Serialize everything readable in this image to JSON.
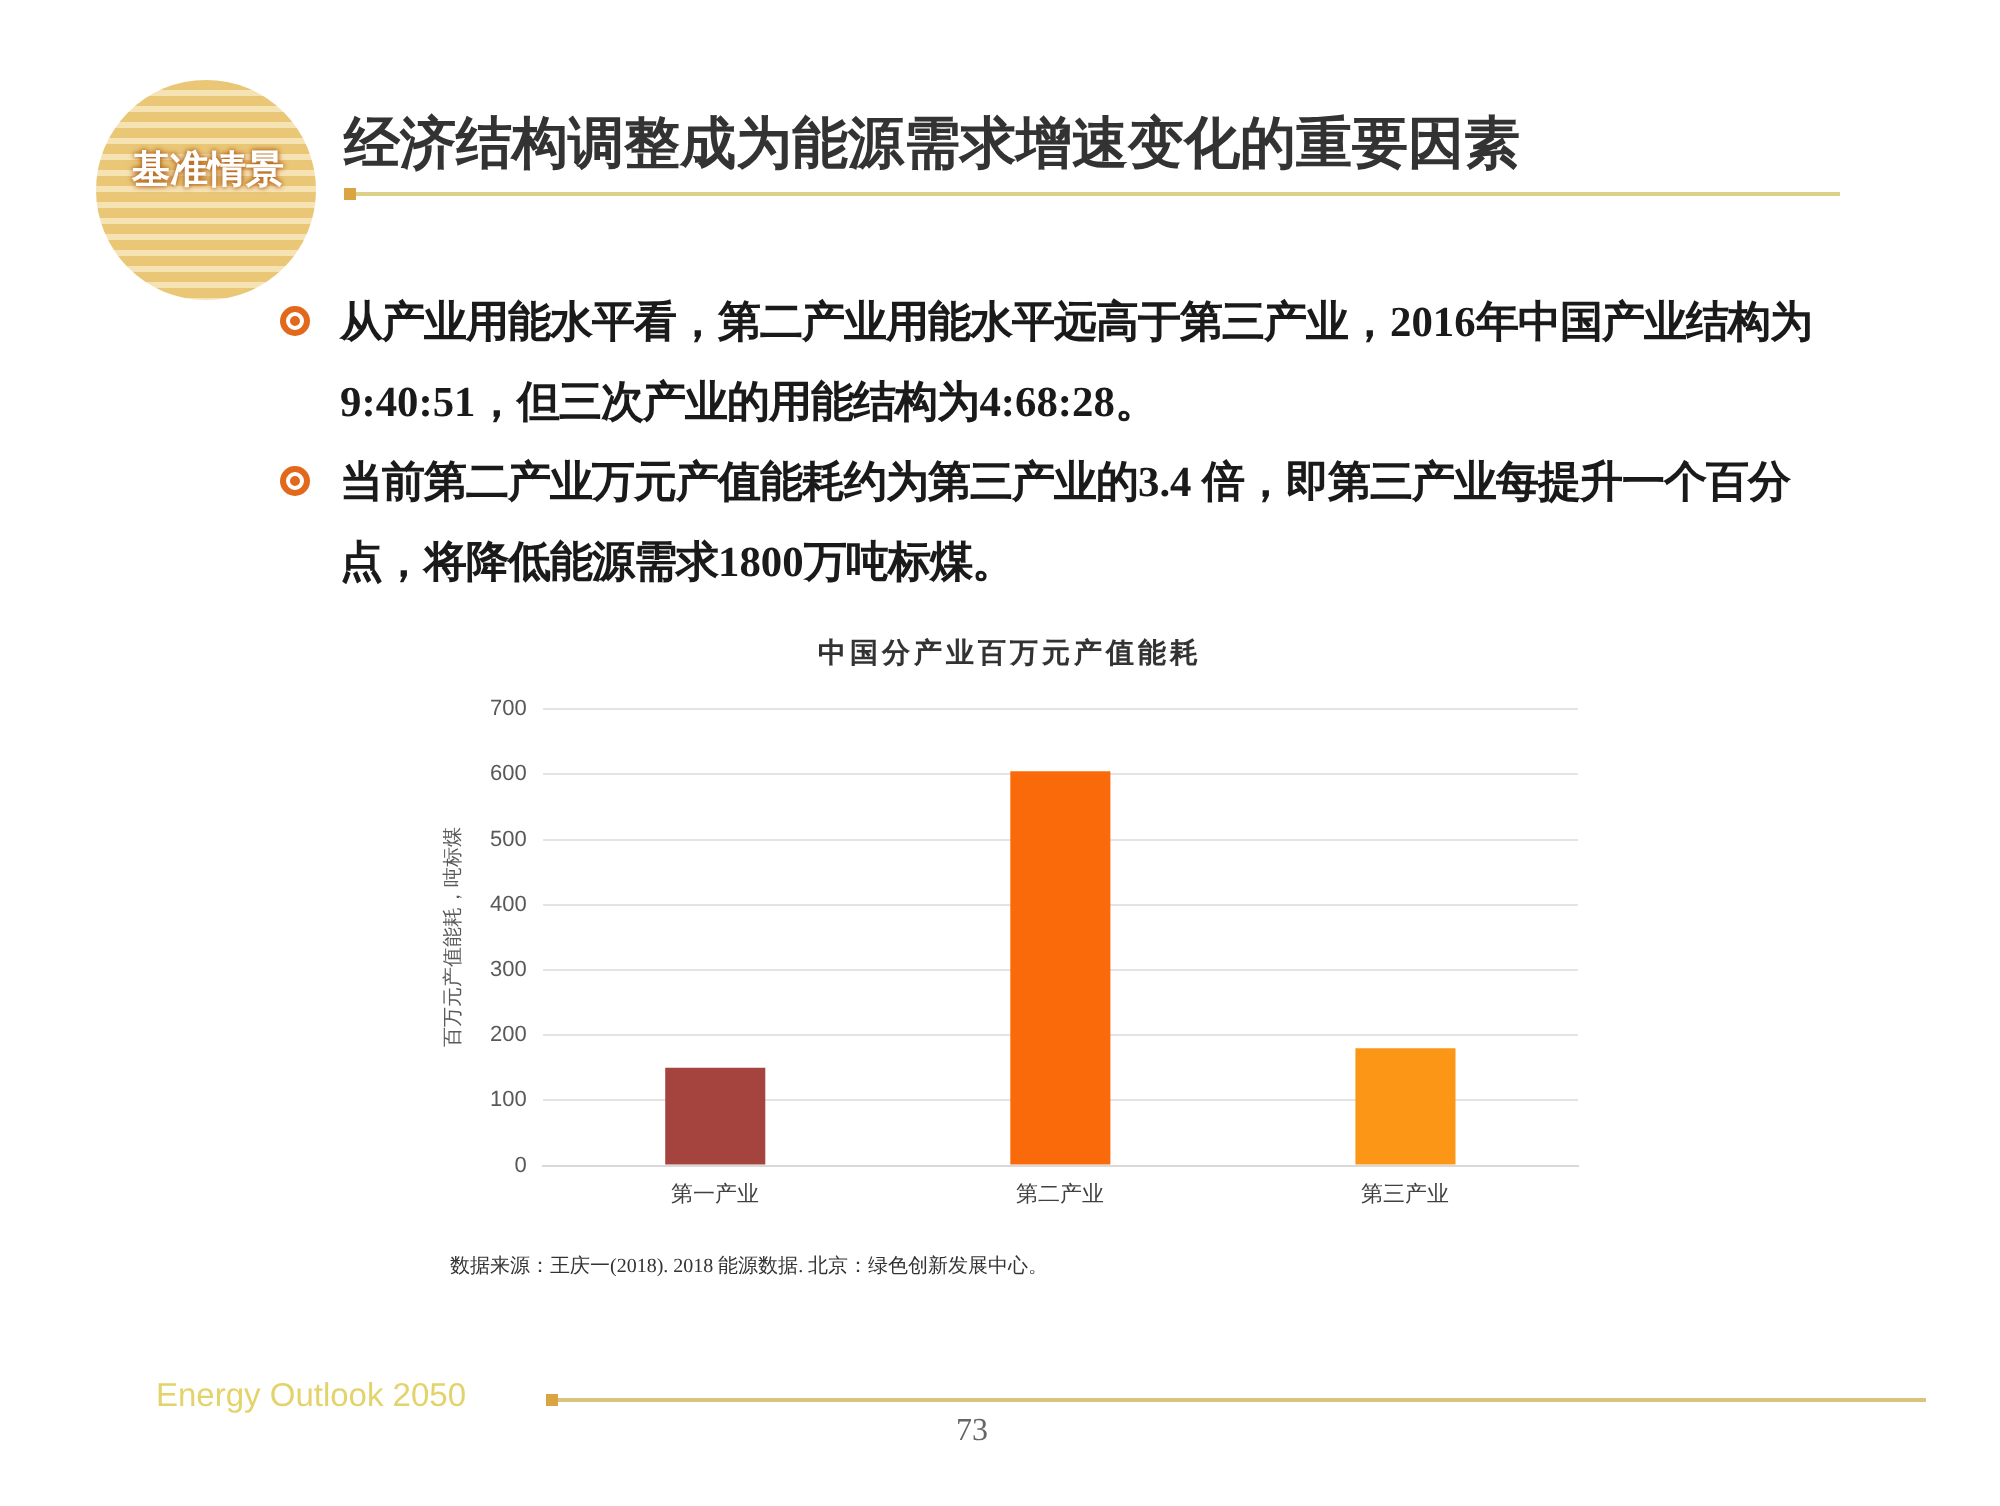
{
  "chart_data": {
    "type": "bar",
    "title": "经济结构调整成为能源需求增速变化的重要因素",
    "subtitle": "中国分产业百万元产值能耗",
    "ylabel": "百万元产值能耗，吨标煤",
    "categories": [
      "第一产业",
      "第二产业",
      "第三产业"
    ],
    "values": [
      150,
      605,
      180
    ],
    "colors": [
      "#a5443f",
      "#fa6a0a",
      "#fb9617"
    ],
    "ylim": [
      0,
      700
    ],
    "yticks": [
      0,
      100,
      200,
      300,
      400,
      500,
      600,
      700
    ],
    "grid": "y",
    "annotations": [
      "基准情景",
      "从产业用能水平看，第二产业用能水平远高于第三产业，2016年中国产业结构为9:40:51，但三次产业的用能结构为4:68:28。",
      "当前第二产业万元产值能耗约为第三产业的3.4 倍，即第三产业每提升一个百分点，将降低能源需求1800万吨标煤。",
      "数据来源：王庆一(2018). 2018 能源数据. 北京：绿色创新发展中心。",
      "Energy Outlook 2050",
      "73"
    ]
  }
}
